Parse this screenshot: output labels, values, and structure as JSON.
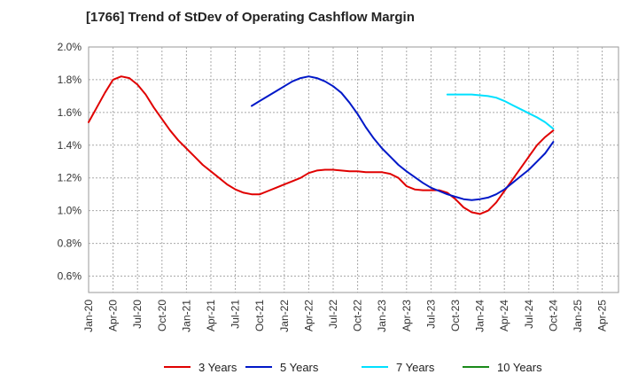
{
  "chart_data": {
    "type": "line",
    "title": "[1766]  Trend of StDev of Operating Cashflow Margin",
    "xlabel": "",
    "ylabel": "",
    "ylim": [
      0.5,
      2.0
    ],
    "y_ticks": [
      "0.6%",
      "0.8%",
      "1.0%",
      "1.2%",
      "1.4%",
      "1.6%",
      "1.8%",
      "2.0%"
    ],
    "x_ticks": [
      "Jan-20",
      "Apr-20",
      "Jul-20",
      "Oct-20",
      "Jan-21",
      "Apr-21",
      "Jul-21",
      "Oct-21",
      "Jan-22",
      "Apr-22",
      "Jul-22",
      "Oct-22",
      "Jan-23",
      "Apr-23",
      "Jul-23",
      "Oct-23",
      "Jan-24",
      "Apr-24",
      "Jul-24",
      "Oct-24",
      "Jan-25",
      "Apr-25"
    ],
    "grid": true,
    "legend_position": "bottom",
    "series": [
      {
        "name": "3 Years",
        "color": "#e00000",
        "x": [
          "Jan-20",
          "Feb-20",
          "Mar-20",
          "Apr-20",
          "May-20",
          "Jun-20",
          "Jul-20",
          "Aug-20",
          "Sep-20",
          "Oct-20",
          "Nov-20",
          "Dec-20",
          "Jan-21",
          "Feb-21",
          "Mar-21",
          "Apr-21",
          "May-21",
          "Jun-21",
          "Jul-21",
          "Aug-21",
          "Sep-21",
          "Oct-21",
          "Nov-21",
          "Dec-21",
          "Jan-22",
          "Feb-22",
          "Mar-22",
          "Apr-22",
          "May-22",
          "Jun-22",
          "Jul-22",
          "Aug-22",
          "Sep-22",
          "Oct-22",
          "Nov-22",
          "Dec-22",
          "Jan-23",
          "Feb-23",
          "Mar-23",
          "Apr-23",
          "May-23",
          "Jun-23",
          "Jul-23",
          "Aug-23",
          "Sep-23",
          "Oct-23",
          "Nov-23",
          "Dec-23",
          "Jan-24",
          "Feb-24",
          "Mar-24",
          "Apr-24",
          "May-24",
          "Jun-24",
          "Jul-24",
          "Aug-24",
          "Sep-24",
          "Oct-24"
        ],
        "values": [
          1.54,
          1.63,
          1.72,
          1.8,
          1.82,
          1.81,
          1.77,
          1.71,
          1.63,
          1.56,
          1.49,
          1.43,
          1.38,
          1.33,
          1.28,
          1.24,
          1.2,
          1.16,
          1.13,
          1.11,
          1.1,
          1.1,
          1.12,
          1.14,
          1.16,
          1.18,
          1.2,
          1.23,
          1.245,
          1.25,
          1.25,
          1.245,
          1.24,
          1.24,
          1.235,
          1.235,
          1.235,
          1.225,
          1.2,
          1.15,
          1.13,
          1.125,
          1.125,
          1.125,
          1.11,
          1.07,
          1.02,
          0.99,
          0.98,
          1.0,
          1.05,
          1.12,
          1.19,
          1.26,
          1.33,
          1.4,
          1.45,
          1.49
        ]
      },
      {
        "name": "5 Years",
        "color": "#0018c8",
        "x": [
          "Sep-21",
          "Oct-21",
          "Nov-21",
          "Dec-21",
          "Jan-22",
          "Feb-22",
          "Mar-22",
          "Apr-22",
          "May-22",
          "Jun-22",
          "Jul-22",
          "Aug-22",
          "Sep-22",
          "Oct-22",
          "Nov-22",
          "Dec-22",
          "Jan-23",
          "Feb-23",
          "Mar-23",
          "Apr-23",
          "May-23",
          "Jun-23",
          "Jul-23",
          "Aug-23",
          "Sep-23",
          "Oct-23",
          "Nov-23",
          "Dec-23",
          "Jan-24",
          "Feb-24",
          "Mar-24",
          "Apr-24",
          "May-24",
          "Jun-24",
          "Jul-24",
          "Aug-24",
          "Sep-24",
          "Oct-24"
        ],
        "values": [
          1.64,
          1.67,
          1.7,
          1.73,
          1.76,
          1.79,
          1.81,
          1.82,
          1.81,
          1.79,
          1.76,
          1.72,
          1.66,
          1.59,
          1.51,
          1.44,
          1.38,
          1.33,
          1.28,
          1.24,
          1.205,
          1.17,
          1.14,
          1.12,
          1.1,
          1.085,
          1.07,
          1.065,
          1.07,
          1.08,
          1.1,
          1.13,
          1.17,
          1.21,
          1.25,
          1.3,
          1.35,
          1.42
        ]
      },
      {
        "name": "7 Years",
        "color": "#00e0ff",
        "x": [
          "Sep-23",
          "Oct-23",
          "Nov-23",
          "Dec-23",
          "Jan-24",
          "Feb-24",
          "Mar-24",
          "Apr-24",
          "May-24",
          "Jun-24",
          "Jul-24",
          "Aug-24",
          "Sep-24",
          "Oct-24"
        ],
        "values": [
          1.71,
          1.71,
          1.71,
          1.71,
          1.705,
          1.7,
          1.69,
          1.67,
          1.645,
          1.62,
          1.595,
          1.57,
          1.54,
          1.5
        ]
      },
      {
        "name": "10 Years",
        "color": "#1a8a1a",
        "x": [],
        "values": []
      }
    ]
  }
}
